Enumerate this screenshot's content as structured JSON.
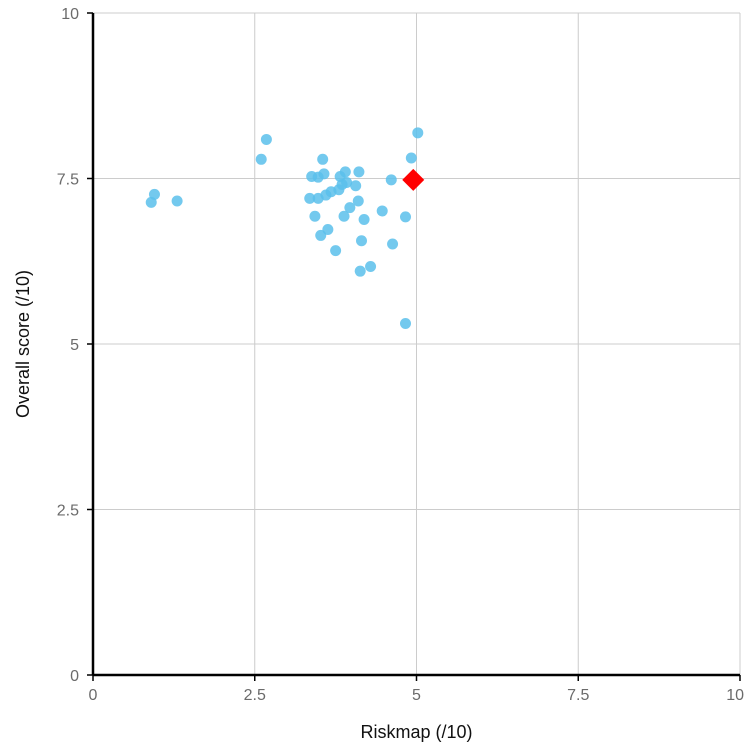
{
  "chart_data": {
    "type": "scatter",
    "title": "",
    "xlabel": "Riskmap (/10)",
    "ylabel": "Overall score (/10)",
    "xlim": [
      0,
      10
    ],
    "ylim": [
      0,
      10
    ],
    "x_ticks": [
      "0",
      "2.5",
      "5",
      "7.5",
      "10"
    ],
    "y_ticks": [
      "0",
      "2.5",
      "5",
      "7.5",
      "10"
    ],
    "grid": true,
    "series": [
      {
        "marker": "circle",
        "color": "#5bc0eb",
        "points": [
          {
            "x": 0.9,
            "y": 7.14
          },
          {
            "x": 0.95,
            "y": 7.26
          },
          {
            "x": 1.3,
            "y": 7.16
          },
          {
            "x": 2.6,
            "y": 7.79
          },
          {
            "x": 2.68,
            "y": 8.09
          },
          {
            "x": 3.35,
            "y": 7.2
          },
          {
            "x": 3.38,
            "y": 7.53
          },
          {
            "x": 3.43,
            "y": 6.93
          },
          {
            "x": 3.48,
            "y": 7.2
          },
          {
            "x": 3.48,
            "y": 7.52
          },
          {
            "x": 3.52,
            "y": 6.64
          },
          {
            "x": 3.55,
            "y": 7.79
          },
          {
            "x": 3.57,
            "y": 7.57
          },
          {
            "x": 3.6,
            "y": 7.25
          },
          {
            "x": 3.63,
            "y": 6.73
          },
          {
            "x": 3.68,
            "y": 7.3
          },
          {
            "x": 3.75,
            "y": 6.41
          },
          {
            "x": 3.8,
            "y": 7.33
          },
          {
            "x": 3.82,
            "y": 7.53
          },
          {
            "x": 3.85,
            "y": 7.41
          },
          {
            "x": 3.88,
            "y": 6.93
          },
          {
            "x": 3.9,
            "y": 7.6
          },
          {
            "x": 3.92,
            "y": 7.44
          },
          {
            "x": 3.97,
            "y": 7.06
          },
          {
            "x": 4.06,
            "y": 7.39
          },
          {
            "x": 4.1,
            "y": 7.16
          },
          {
            "x": 4.11,
            "y": 7.6
          },
          {
            "x": 4.13,
            "y": 6.1
          },
          {
            "x": 4.15,
            "y": 6.56
          },
          {
            "x": 4.19,
            "y": 6.88
          },
          {
            "x": 4.29,
            "y": 6.17
          },
          {
            "x": 4.47,
            "y": 7.01
          },
          {
            "x": 4.61,
            "y": 7.48
          },
          {
            "x": 4.63,
            "y": 6.51
          },
          {
            "x": 4.83,
            "y": 6.92
          },
          {
            "x": 4.83,
            "y": 5.31
          },
          {
            "x": 4.92,
            "y": 7.81
          },
          {
            "x": 5.02,
            "y": 8.19
          }
        ]
      },
      {
        "marker": "diamond",
        "color": "#ff0000",
        "points": [
          {
            "x": 4.95,
            "y": 7.48
          }
        ]
      }
    ]
  }
}
